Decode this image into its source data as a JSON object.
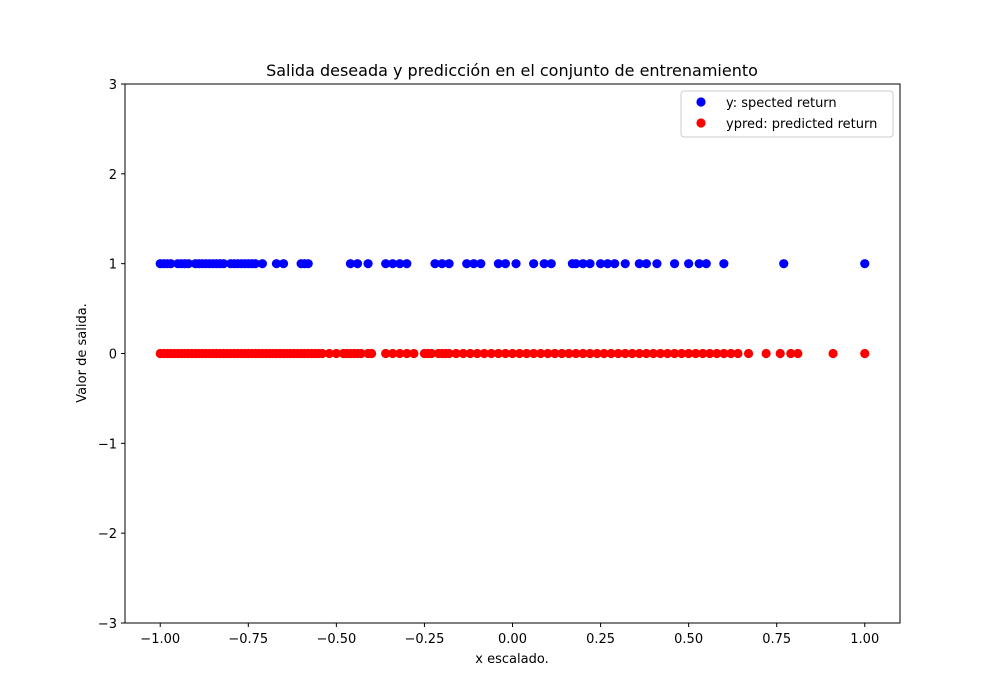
{
  "chart_data": {
    "type": "scatter",
    "title": "Salida deseada y predicción en el conjunto de entrenamiento",
    "xlabel": "x escalado.",
    "ylabel": "Valor de salida.",
    "xlim": [
      -1.1,
      1.1
    ],
    "ylim": [
      -3,
      3
    ],
    "x_ticks": [
      -1.0,
      -0.75,
      -0.5,
      -0.25,
      0.0,
      0.25,
      0.5,
      0.75,
      1.0
    ],
    "x_tick_labels": [
      "−1.00",
      "−0.75",
      "−0.50",
      "−0.25",
      "0.00",
      "0.25",
      "0.50",
      "0.75",
      "1.00"
    ],
    "y_ticks": [
      -3,
      -2,
      -1,
      0,
      1,
      2,
      3
    ],
    "y_tick_labels": [
      "−3",
      "−2",
      "−1",
      "0",
      "1",
      "2",
      "3"
    ],
    "legend_position": "top-right",
    "grid": false,
    "series": [
      {
        "name": "y: spected return",
        "color": "#0000ff",
        "x": [
          -1.0,
          -0.99,
          -0.98,
          -0.97,
          -0.95,
          -0.94,
          -0.93,
          -0.92,
          -0.9,
          -0.89,
          -0.88,
          -0.87,
          -0.86,
          -0.85,
          -0.84,
          -0.83,
          -0.82,
          -0.8,
          -0.79,
          -0.78,
          -0.77,
          -0.76,
          -0.75,
          -0.74,
          -0.73,
          -0.71,
          -0.67,
          -0.65,
          -0.6,
          -0.59,
          -0.58,
          -0.46,
          -0.44,
          -0.41,
          -0.36,
          -0.34,
          -0.32,
          -0.3,
          -0.22,
          -0.2,
          -0.18,
          -0.13,
          -0.11,
          -0.09,
          -0.04,
          -0.02,
          0.01,
          0.06,
          0.09,
          0.11,
          0.17,
          0.18,
          0.2,
          0.22,
          0.25,
          0.27,
          0.29,
          0.32,
          0.36,
          0.38,
          0.41,
          0.46,
          0.5,
          0.53,
          0.55,
          0.6,
          0.77,
          1.0
        ],
        "y": [
          1,
          1,
          1,
          1,
          1,
          1,
          1,
          1,
          1,
          1,
          1,
          1,
          1,
          1,
          1,
          1,
          1,
          1,
          1,
          1,
          1,
          1,
          1,
          1,
          1,
          1,
          1,
          1,
          1,
          1,
          1,
          1,
          1,
          1,
          1,
          1,
          1,
          1,
          1,
          1,
          1,
          1,
          1,
          1,
          1,
          1,
          1,
          1,
          1,
          1,
          1,
          1,
          1,
          1,
          1,
          1,
          1,
          1,
          1,
          1,
          1,
          1,
          1,
          1,
          1,
          1,
          1,
          1
        ]
      },
      {
        "name": "ypred: predicted return",
        "color": "#ff0000",
        "x": [
          -1.0,
          -0.99,
          -0.98,
          -0.97,
          -0.96,
          -0.95,
          -0.94,
          -0.93,
          -0.92,
          -0.91,
          -0.9,
          -0.89,
          -0.88,
          -0.87,
          -0.86,
          -0.85,
          -0.84,
          -0.83,
          -0.82,
          -0.81,
          -0.8,
          -0.79,
          -0.78,
          -0.77,
          -0.76,
          -0.75,
          -0.74,
          -0.73,
          -0.72,
          -0.71,
          -0.7,
          -0.69,
          -0.68,
          -0.67,
          -0.66,
          -0.65,
          -0.64,
          -0.63,
          -0.62,
          -0.61,
          -0.6,
          -0.59,
          -0.58,
          -0.57,
          -0.56,
          -0.55,
          -0.54,
          -0.52,
          -0.5,
          -0.48,
          -0.47,
          -0.46,
          -0.45,
          -0.44,
          -0.43,
          -0.41,
          -0.4,
          -0.36,
          -0.34,
          -0.32,
          -0.3,
          -0.28,
          -0.25,
          -0.24,
          -0.23,
          -0.21,
          -0.2,
          -0.19,
          -0.18,
          -0.16,
          -0.14,
          -0.12,
          -0.1,
          -0.08,
          -0.06,
          -0.04,
          -0.02,
          0.0,
          0.02,
          0.04,
          0.06,
          0.08,
          0.1,
          0.12,
          0.14,
          0.16,
          0.18,
          0.2,
          0.22,
          0.24,
          0.26,
          0.28,
          0.3,
          0.32,
          0.34,
          0.36,
          0.38,
          0.4,
          0.42,
          0.44,
          0.46,
          0.48,
          0.5,
          0.52,
          0.54,
          0.56,
          0.58,
          0.6,
          0.62,
          0.64,
          0.67,
          0.72,
          0.76,
          0.79,
          0.81,
          0.91,
          1.0
        ],
        "y": [
          0,
          0,
          0,
          0,
          0,
          0,
          0,
          0,
          0,
          0,
          0,
          0,
          0,
          0,
          0,
          0,
          0,
          0,
          0,
          0,
          0,
          0,
          0,
          0,
          0,
          0,
          0,
          0,
          0,
          0,
          0,
          0,
          0,
          0,
          0,
          0,
          0,
          0,
          0,
          0,
          0,
          0,
          0,
          0,
          0,
          0,
          0,
          0,
          0,
          0,
          0,
          0,
          0,
          0,
          0,
          0,
          0,
          0,
          0,
          0,
          0,
          0,
          0,
          0,
          0,
          0,
          0,
          0,
          0,
          0,
          0,
          0,
          0,
          0,
          0,
          0,
          0,
          0,
          0,
          0,
          0,
          0,
          0,
          0,
          0,
          0,
          0,
          0,
          0,
          0,
          0,
          0,
          0,
          0,
          0,
          0,
          0,
          0,
          0,
          0,
          0,
          0,
          0,
          0,
          0,
          0,
          0,
          0,
          0,
          0,
          0,
          0,
          0,
          0,
          0,
          0,
          0
        ]
      }
    ]
  }
}
